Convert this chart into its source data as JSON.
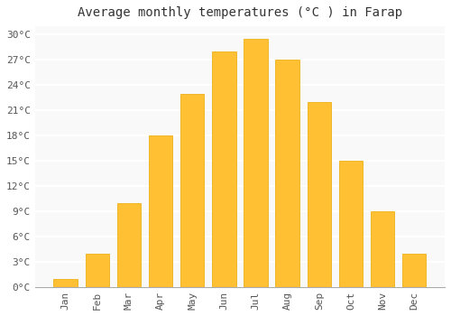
{
  "title": "Average monthly temperatures (°C ) in Farap",
  "months": [
    "Jan",
    "Feb",
    "Mar",
    "Apr",
    "May",
    "Jun",
    "Jul",
    "Aug",
    "Sep",
    "Oct",
    "Nov",
    "Dec"
  ],
  "values": [
    1,
    4,
    10,
    18,
    23,
    28,
    29.5,
    27,
    22,
    15,
    9,
    4
  ],
  "bar_color": "#FFC033",
  "bar_edge_color": "#E8A800",
  "ylim": [
    0,
    31
  ],
  "yticks": [
    0,
    3,
    6,
    9,
    12,
    15,
    18,
    21,
    24,
    27,
    30
  ],
  "ytick_labels": [
    "0°C",
    "3°C",
    "6°C",
    "9°C",
    "12°C",
    "15°C",
    "18°C",
    "21°C",
    "24°C",
    "27°C",
    "30°C"
  ],
  "background_color": "#ffffff",
  "plot_bg_color": "#f9f9f9",
  "grid_color": "#ffffff",
  "title_fontsize": 10,
  "tick_fontsize": 8,
  "bar_width": 0.75
}
